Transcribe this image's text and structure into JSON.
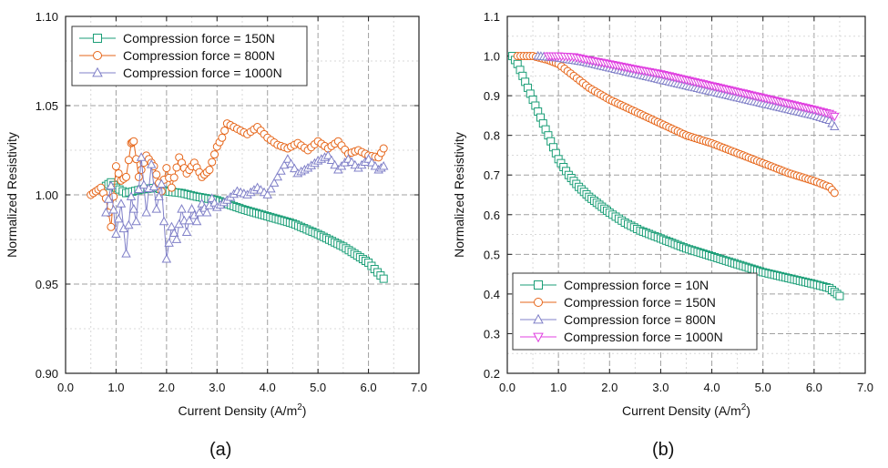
{
  "chart_data": [
    {
      "type": "scatter",
      "panel_label": "(a)",
      "xlabel": "Current Density (A/m",
      "xlabel_sup": "2",
      "xlabel_close": ")",
      "ylabel": "Normalized Resistivity",
      "xlim": [
        0.0,
        7.0
      ],
      "ylim": [
        0.9,
        1.1
      ],
      "xticks": [
        0.0,
        1.0,
        2.0,
        3.0,
        4.0,
        5.0,
        6.0,
        7.0
      ],
      "xtick_labels": [
        "0.0",
        "1.0",
        "2.0",
        "3.0",
        "4.0",
        "5.0",
        "6.0",
        "7.0"
      ],
      "yticks": [
        0.9,
        0.95,
        1.0,
        1.05,
        1.1
      ],
      "ytick_labels": [
        "0.90",
        "0.95",
        "1.00",
        "1.05",
        "1.10"
      ],
      "grid": true,
      "legend_position": "top-left",
      "series": [
        {
          "name": "Compression force = 150N",
          "color": "#1b9e77",
          "marker": "square",
          "x": [
            0.8,
            0.9,
            1.0,
            1.2,
            1.5,
            1.8,
            2.0,
            2.3,
            2.6,
            3.0,
            3.5,
            4.0,
            4.5,
            5.0,
            5.5,
            6.0,
            6.3
          ],
          "y": [
            1.005,
            1.007,
            1.004,
            1.001,
            1.003,
            1.004,
            1.002,
            1.001,
            0.999,
            0.997,
            0.992,
            0.988,
            0.984,
            0.978,
            0.971,
            0.962,
            0.953
          ]
        },
        {
          "name": "Compression force = 800N",
          "color": "#e6661a",
          "marker": "circle",
          "x": [
            0.5,
            0.6,
            0.7,
            0.8,
            0.9,
            1.0,
            1.1,
            1.2,
            1.3,
            1.35,
            1.45,
            1.6,
            1.75,
            1.9,
            2.0,
            2.1,
            2.25,
            2.4,
            2.55,
            2.7,
            2.85,
            3.0,
            3.1,
            3.2,
            3.4,
            3.6,
            3.8,
            4.0,
            4.2,
            4.4,
            4.6,
            4.8,
            5.0,
            5.2,
            5.4,
            5.6,
            5.8,
            6.0,
            6.2,
            6.3
          ],
          "y": [
            1.0,
            1.002,
            1.004,
            0.998,
            0.982,
            1.016,
            1.008,
            1.01,
            1.029,
            1.03,
            1.01,
            1.022,
            1.016,
            1.002,
            1.015,
            1.004,
            1.021,
            1.012,
            1.018,
            1.01,
            1.014,
            1.027,
            1.032,
            1.04,
            1.037,
            1.034,
            1.038,
            1.032,
            1.028,
            1.026,
            1.029,
            1.025,
            1.03,
            1.026,
            1.03,
            1.023,
            1.025,
            1.022,
            1.021,
            1.026
          ]
        },
        {
          "name": "Compression force = 1000N",
          "color": "#8080c8",
          "marker": "triangle",
          "x": [
            0.8,
            0.9,
            1.0,
            1.1,
            1.2,
            1.3,
            1.4,
            1.5,
            1.6,
            1.7,
            1.8,
            1.9,
            2.0,
            2.1,
            2.2,
            2.3,
            2.4,
            2.5,
            2.6,
            2.7,
            2.8,
            2.9,
            3.0,
            3.2,
            3.4,
            3.6,
            3.8,
            4.0,
            4.2,
            4.4,
            4.6,
            4.8,
            5.0,
            5.2,
            5.4,
            5.6,
            5.8,
            6.0,
            6.2,
            6.3
          ],
          "y": [
            0.99,
            1.005,
            0.978,
            0.995,
            0.967,
            0.999,
            0.985,
            1.021,
            0.99,
            1.017,
            0.992,
            1.006,
            0.964,
            0.982,
            0.975,
            0.992,
            0.979,
            0.992,
            0.985,
            0.995,
            0.99,
            0.998,
            0.993,
            0.997,
            1.002,
            1.0,
            1.004,
            1.0,
            1.01,
            1.02,
            1.012,
            1.015,
            1.019,
            1.022,
            1.014,
            1.02,
            1.015,
            1.02,
            1.014,
            1.016
          ]
        }
      ]
    },
    {
      "type": "scatter",
      "panel_label": "(b)",
      "xlabel": "Current Density (A/m",
      "xlabel_sup": "2",
      "xlabel_close": ")",
      "ylabel": "Normalized Resistivity",
      "xlim": [
        0.0,
        7.0
      ],
      "ylim": [
        0.2,
        1.1
      ],
      "xticks": [
        0.0,
        1.0,
        2.0,
        3.0,
        4.0,
        5.0,
        6.0,
        7.0
      ],
      "xtick_labels": [
        "0.0",
        "1.0",
        "2.0",
        "3.0",
        "4.0",
        "5.0",
        "6.0",
        "7.0"
      ],
      "yticks": [
        0.2,
        0.3,
        0.4,
        0.5,
        0.6,
        0.7,
        0.8,
        0.9,
        1.0,
        1.1
      ],
      "ytick_labels": [
        "0.2",
        "0.3",
        "0.4",
        "0.5",
        "0.6",
        "0.7",
        "0.8",
        "0.9",
        "1.0",
        "1.1"
      ],
      "grid": true,
      "legend_position": "bottom-left",
      "series": [
        {
          "name": "Compression force = 10N",
          "color": "#1b9e77",
          "marker": "square",
          "x": [
            0.1,
            0.2,
            0.3,
            0.4,
            0.5,
            0.6,
            0.7,
            0.8,
            0.9,
            1.0,
            1.2,
            1.4,
            1.6,
            1.8,
            2.0,
            2.3,
            2.6,
            3.0,
            3.5,
            4.0,
            4.5,
            5.0,
            5.5,
            6.0,
            6.3,
            6.5
          ],
          "y": [
            1.0,
            0.98,
            0.95,
            0.92,
            0.89,
            0.86,
            0.83,
            0.8,
            0.77,
            0.74,
            0.7,
            0.67,
            0.645,
            0.625,
            0.605,
            0.58,
            0.56,
            0.54,
            0.515,
            0.495,
            0.475,
            0.455,
            0.44,
            0.425,
            0.415,
            0.395
          ]
        },
        {
          "name": "Compression force = 150N",
          "color": "#e6661a",
          "marker": "circle",
          "x": [
            0.2,
            0.5,
            0.8,
            1.0,
            1.3,
            1.6,
            2.0,
            2.5,
            3.0,
            3.5,
            4.0,
            4.5,
            5.0,
            5.5,
            6.0,
            6.3,
            6.4
          ],
          "y": [
            1.0,
            1.0,
            0.99,
            0.98,
            0.95,
            0.92,
            0.89,
            0.86,
            0.83,
            0.8,
            0.78,
            0.755,
            0.73,
            0.705,
            0.685,
            0.67,
            0.655
          ]
        },
        {
          "name": "Compression force = 800N",
          "color": "#8080c8",
          "marker": "triangle",
          "x": [
            0.6,
            1.0,
            1.5,
            2.0,
            2.5,
            3.0,
            3.5,
            4.0,
            4.5,
            5.0,
            5.5,
            6.0,
            6.3,
            6.4
          ],
          "y": [
            1.0,
            0.995,
            0.985,
            0.97,
            0.955,
            0.94,
            0.925,
            0.91,
            0.895,
            0.88,
            0.865,
            0.85,
            0.838,
            0.822
          ]
        },
        {
          "name": "Compression force = 1000N",
          "color": "#e040e0",
          "marker": "triangle-down",
          "x": [
            0.8,
            1.0,
            1.3,
            1.6,
            2.0,
            2.5,
            3.0,
            3.5,
            4.0,
            4.5,
            5.0,
            5.5,
            6.0,
            6.3,
            6.4
          ],
          "y": [
            1.0,
            1.0,
            0.998,
            0.99,
            0.98,
            0.967,
            0.955,
            0.94,
            0.925,
            0.91,
            0.895,
            0.88,
            0.865,
            0.855,
            0.848
          ]
        }
      ]
    }
  ]
}
